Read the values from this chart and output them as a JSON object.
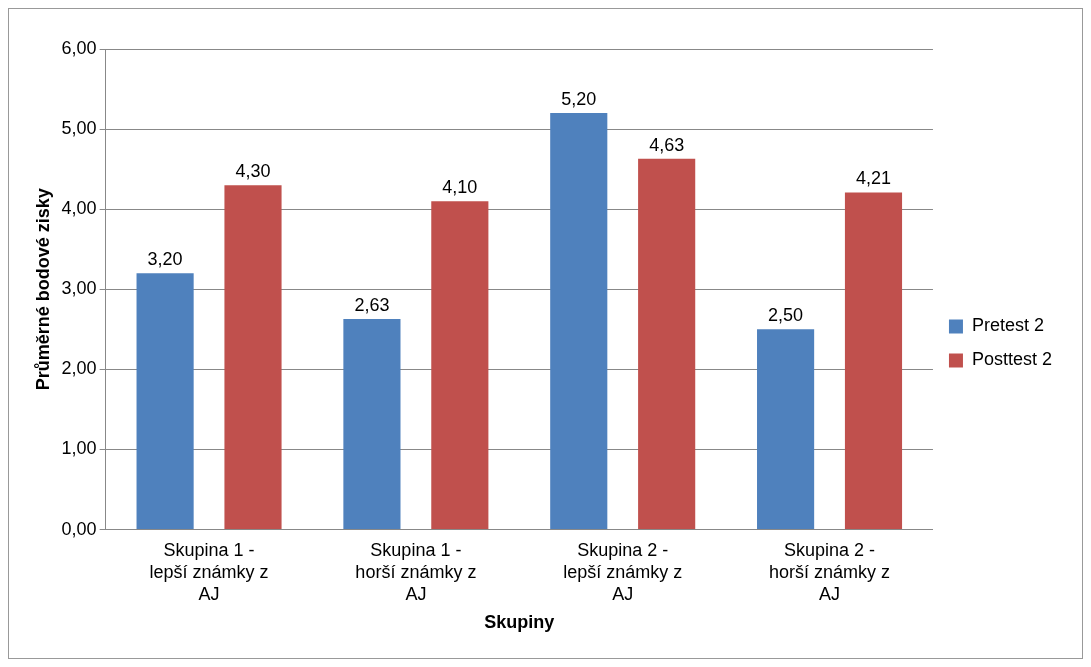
{
  "chart_data": {
    "type": "bar",
    "xlabel": "Skupiny",
    "ylabel": "Průměrné bodové zisky",
    "categories": [
      "Skupina 1 - lepší známky z AJ",
      "Skupina 1 - horší známky z AJ",
      "Skupina 2 - lepší známky z AJ",
      "Skupina 2 - horší známky z AJ"
    ],
    "series": [
      {
        "name": "Pretest 2",
        "color": "#4f81bd",
        "values": [
          3.2,
          2.63,
          5.2,
          2.5
        ],
        "value_labels": [
          "3,20",
          "2,63",
          "5,20",
          "2,50"
        ]
      },
      {
        "name": "Posttest 2",
        "color": "#c0504d",
        "values": [
          4.3,
          4.1,
          4.63,
          4.21
        ],
        "value_labels": [
          "4,30",
          "4,10",
          "4,63",
          "4,21"
        ]
      }
    ],
    "ylim": [
      0,
      6
    ],
    "yticks": [
      {
        "value": 0,
        "label": "0,00"
      },
      {
        "value": 1,
        "label": "1,00"
      },
      {
        "value": 2,
        "label": "2,00"
      },
      {
        "value": 3,
        "label": "3,00"
      },
      {
        "value": 4,
        "label": "4,00"
      },
      {
        "value": 5,
        "label": "5,00"
      },
      {
        "value": 6,
        "label": "6,00"
      }
    ],
    "grid": "y",
    "legend": "right"
  }
}
